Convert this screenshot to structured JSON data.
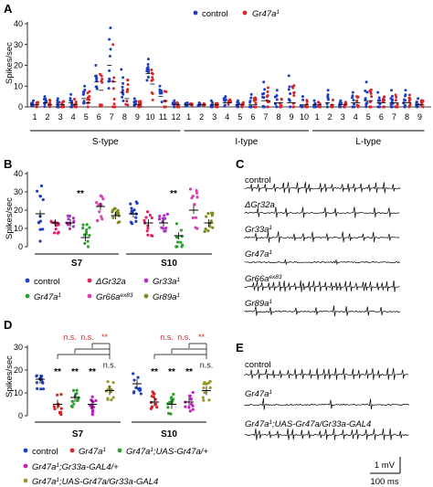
{
  "colors": {
    "control": "#1f3fbf",
    "gr47a": "#d62728",
    "dgr32a": "#e0206b",
    "gr33a": "#b02fc6",
    "gr66a": "#d93fb0",
    "gr89a": "#7d8a23",
    "green": "#2ca02c",
    "magenta": "#c020c0",
    "olive": "#9a9a2a"
  },
  "panel_a": {
    "label": "A",
    "legend": [
      {
        "name": "control",
        "color": "control"
      },
      {
        "name": "Gr47a",
        "sup": "1",
        "color": "gr47a"
      }
    ],
    "ylabel": "Spikes/sec",
    "yticks": [
      "0",
      "10",
      "20",
      "30",
      "40"
    ],
    "groups": [
      {
        "name": "S-type",
        "sensilla": [
          "1",
          "2",
          "3",
          "4",
          "5",
          "6",
          "7",
          "8",
          "9",
          "10",
          "11",
          "12"
        ]
      },
      {
        "name": "I-type",
        "sensilla": [
          "1",
          "2",
          "3",
          "4",
          "5",
          "6",
          "7",
          "8",
          "9",
          "10"
        ]
      },
      {
        "name": "L-type",
        "sensilla": [
          "1",
          "2",
          "3",
          "4",
          "5",
          "6",
          "7",
          "8",
          "9"
        ]
      }
    ],
    "chart_data": {
      "type": "scatter",
      "ylabel": "Spikes/sec",
      "ylim": [
        0,
        40
      ],
      "means_control": [
        1,
        2,
        1,
        2,
        4,
        12,
        20,
        7,
        1,
        16,
        5,
        1,
        1,
        1,
        1,
        2,
        1,
        1,
        3,
        2,
        2,
        1,
        1,
        2,
        1,
        2,
        3,
        2,
        2,
        2,
        1
      ],
      "means_gr47a": [
        1,
        1,
        1,
        1,
        2,
        8,
        12,
        4,
        1,
        11,
        3,
        1,
        1,
        1,
        1,
        2,
        1,
        1,
        3,
        2,
        2,
        1,
        1,
        1,
        1,
        2,
        3,
        2,
        2,
        2,
        1
      ],
      "max_control": [
        3,
        5,
        4,
        6,
        10,
        20,
        38,
        18,
        4,
        23,
        10,
        3,
        2,
        2,
        3,
        5,
        3,
        6,
        12,
        8,
        15,
        5,
        3,
        8,
        3,
        7,
        12,
        7,
        8,
        8,
        4
      ]
    }
  },
  "panel_b": {
    "label": "B",
    "ylabel": "Spikes/sec",
    "yticks": [
      "0",
      "10",
      "20",
      "30",
      "40"
    ],
    "groups": [
      "S7",
      "S10"
    ],
    "significance": [
      {
        "genotype": "gr47a_s7",
        "label": "**"
      },
      {
        "genotype": "gr47a_s10",
        "label": "**"
      }
    ],
    "legend": [
      {
        "name": "control",
        "color": "control"
      },
      {
        "name": "ΔGr32a",
        "color": "dgr32a"
      },
      {
        "name": "Gr33a",
        "sup": "1",
        "color": "gr33a"
      },
      {
        "name": "Gr47a",
        "sup": "1",
        "color": "green"
      },
      {
        "name": "Gr66a",
        "sup": "ex83",
        "color": "gr66a"
      },
      {
        "name": "Gr89a",
        "sup": "1",
        "color": "gr89a"
      }
    ],
    "chart_data": {
      "type": "scatter",
      "ylim": [
        0,
        40
      ],
      "series": [
        {
          "group": "S7",
          "means": [
            18,
            13,
            13,
            5,
            22,
            17
          ],
          "spread": [
            20,
            9,
            5,
            11,
            10,
            6
          ]
        },
        {
          "group": "S10",
          "means": [
            18,
            13,
            13,
            6,
            20,
            13
          ],
          "spread": [
            9,
            9,
            6,
            14,
            15,
            7
          ]
        }
      ]
    }
  },
  "panel_c": {
    "label": "C",
    "traces": [
      {
        "label": "control"
      },
      {
        "label": "ΔGr32a",
        "italic": true
      },
      {
        "label": "Gr33a",
        "sup": "1",
        "italic": true
      },
      {
        "label": "Gr47a",
        "sup": "1",
        "italic": true
      },
      {
        "label": "Gr66a",
        "sup": "ex83",
        "italic": true
      },
      {
        "label": "Gr89a",
        "sup": "1",
        "italic": true
      }
    ]
  },
  "panel_d": {
    "label": "D",
    "ylabel": "Spikes/sec",
    "yticks": [
      "0",
      "10",
      "20",
      "30"
    ],
    "groups": [
      "S7",
      "S10"
    ],
    "ns_label": "n.s.",
    "sig_label": "**",
    "legend": [
      {
        "name": "control",
        "color": "control"
      },
      {
        "name": "Gr47a",
        "sup": "1",
        "color": "gr47a"
      },
      {
        "name": "Gr47a",
        "sup": "1",
        "rest": ";UAS-Gr47a/+",
        "color": "green"
      },
      {
        "name": "Gr47a",
        "sup": "1",
        "rest": ";Gr33a-GAL4/+",
        "color": "magenta"
      },
      {
        "name": "Gr47a",
        "sup": "1",
        "rest": ";UAS-Gr47a/Gr33a-GAL4",
        "color": "olive"
      }
    ],
    "chart_data": {
      "type": "scatter",
      "ylim": [
        0,
        30
      ],
      "series": [
        {
          "group": "S7",
          "means": [
            16,
            5,
            8,
            5,
            11
          ]
        },
        {
          "group": "S10",
          "means": [
            14,
            6,
            5,
            6,
            11
          ]
        }
      ]
    }
  },
  "panel_e": {
    "label": "E",
    "traces": [
      {
        "label": "control"
      },
      {
        "label": "Gr47a",
        "sup": "1",
        "italic": true
      },
      {
        "label": "Gr47a",
        "sup": "1",
        "rest": ";UAS-Gr47a/Gr33a-GAL4",
        "italic": true
      }
    ],
    "scalebar_v": "1 mV",
    "scalebar_h": "100 ms"
  }
}
